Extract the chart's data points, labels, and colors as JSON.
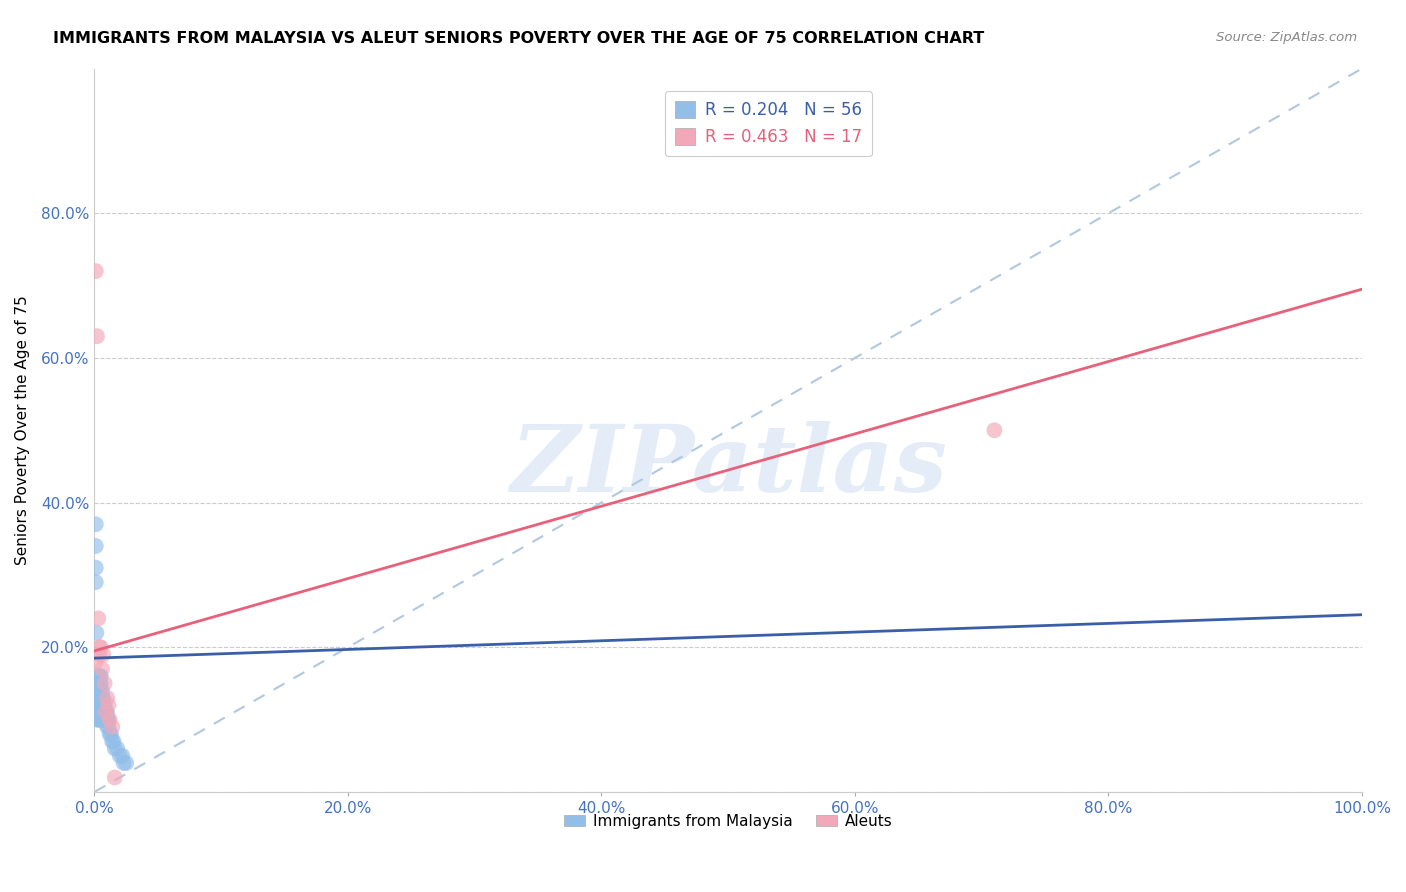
{
  "title": "IMMIGRANTS FROM MALAYSIA VS ALEUT SENIORS POVERTY OVER THE AGE OF 75 CORRELATION CHART",
  "source": "Source: ZipAtlas.com",
  "ylabel": "Seniors Poverty Over the Age of 75",
  "xlabel": "",
  "xlim": [
    0,
    1.0
  ],
  "ylim": [
    0,
    1.0
  ],
  "xticks": [
    0.0,
    0.2,
    0.4,
    0.6,
    0.8,
    1.0
  ],
  "xticklabels": [
    "0.0%",
    "20.0%",
    "40.0%",
    "60.0%",
    "80.0%",
    "100.0%"
  ],
  "yticks": [
    0.0,
    0.2,
    0.4,
    0.6,
    0.8
  ],
  "yticklabels": [
    "",
    "20.0%",
    "40.0%",
    "60.0%",
    "80.0%"
  ],
  "blue_color": "#92BEE8",
  "pink_color": "#F2A8B8",
  "blue_line_color": "#3A5FA8",
  "pink_line_color": "#E8607A",
  "dashed_line_color": "#B0C8E0",
  "R_blue": 0.204,
  "N_blue": 56,
  "R_pink": 0.463,
  "N_pink": 17,
  "watermark": "ZIPatlas",
  "legend_label_blue": "Immigrants from Malaysia",
  "legend_label_pink": "Aleuts",
  "blue_line_x0": 0.0,
  "blue_line_y0": 0.185,
  "blue_line_x1": 1.0,
  "blue_line_y1": 0.245,
  "pink_line_x0": 0.0,
  "pink_line_y0": 0.195,
  "pink_line_x1": 1.0,
  "pink_line_y1": 0.695,
  "blue_scatter_x": [
    0.001,
    0.001,
    0.001,
    0.001,
    0.0015,
    0.002,
    0.002,
    0.002,
    0.003,
    0.003,
    0.003,
    0.003,
    0.003,
    0.003,
    0.004,
    0.004,
    0.004,
    0.004,
    0.004,
    0.004,
    0.004,
    0.005,
    0.005,
    0.005,
    0.005,
    0.005,
    0.005,
    0.005,
    0.006,
    0.006,
    0.006,
    0.006,
    0.007,
    0.007,
    0.007,
    0.007,
    0.008,
    0.008,
    0.008,
    0.009,
    0.009,
    0.01,
    0.01,
    0.01,
    0.011,
    0.011,
    0.012,
    0.013,
    0.014,
    0.015,
    0.016,
    0.018,
    0.02,
    0.022,
    0.023,
    0.025
  ],
  "blue_scatter_y": [
    0.29,
    0.31,
    0.34,
    0.37,
    0.22,
    0.1,
    0.12,
    0.14,
    0.1,
    0.11,
    0.12,
    0.13,
    0.14,
    0.16,
    0.1,
    0.11,
    0.12,
    0.13,
    0.14,
    0.15,
    0.16,
    0.1,
    0.11,
    0.12,
    0.13,
    0.14,
    0.15,
    0.16,
    0.11,
    0.12,
    0.13,
    0.14,
    0.1,
    0.11,
    0.12,
    0.13,
    0.1,
    0.11,
    0.12,
    0.1,
    0.11,
    0.09,
    0.1,
    0.11,
    0.09,
    0.1,
    0.08,
    0.08,
    0.07,
    0.07,
    0.06,
    0.06,
    0.05,
    0.05,
    0.04,
    0.04
  ],
  "pink_scatter_x": [
    0.001,
    0.001,
    0.002,
    0.003,
    0.004,
    0.004,
    0.005,
    0.006,
    0.007,
    0.008,
    0.009,
    0.01,
    0.011,
    0.012,
    0.014,
    0.016,
    0.71
  ],
  "pink_scatter_y": [
    0.72,
    0.18,
    0.63,
    0.24,
    0.2,
    0.19,
    0.2,
    0.17,
    0.19,
    0.15,
    0.11,
    0.13,
    0.12,
    0.1,
    0.09,
    0.02,
    0.5
  ]
}
